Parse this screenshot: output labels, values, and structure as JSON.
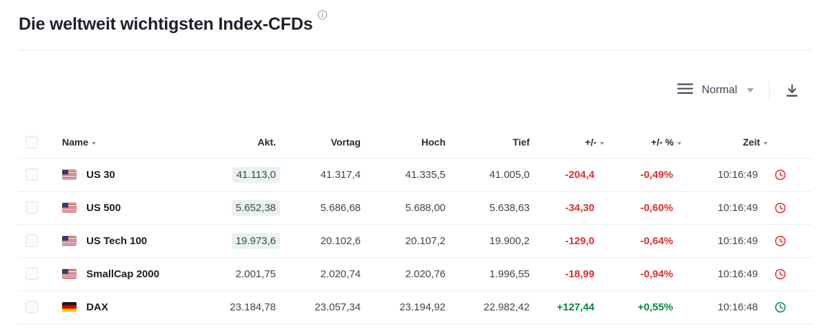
{
  "page": {
    "title": "Die weltweit wichtigsten Index-CFDs"
  },
  "toolbar": {
    "view_mode": "Normal"
  },
  "colors": {
    "negative": "#e22d2d",
    "positive": "#0c8346",
    "flash_background": "#e8f3ee"
  },
  "table": {
    "columns": [
      {
        "key": "name",
        "label": "Name",
        "sortable": true
      },
      {
        "key": "akt",
        "label": "Akt.",
        "sortable": false
      },
      {
        "key": "vortag",
        "label": "Vortag",
        "sortable": false
      },
      {
        "key": "hoch",
        "label": "Hoch",
        "sortable": false
      },
      {
        "key": "tief",
        "label": "Tief",
        "sortable": false
      },
      {
        "key": "change",
        "label": "+/-",
        "sortable": true
      },
      {
        "key": "change_pct",
        "label": "+/- %",
        "sortable": true
      },
      {
        "key": "zeit",
        "label": "Zeit",
        "sortable": true
      }
    ],
    "rows": [
      {
        "flag": "us",
        "name": "US 30",
        "akt": "41.113,0",
        "akt_highlight": true,
        "vortag": "41.317,4",
        "hoch": "41.335,5",
        "tief": "41.005,0",
        "change": "-204,4",
        "change_pct": "-0,49%",
        "zeit": "10:16:49",
        "trend": "negative"
      },
      {
        "flag": "us",
        "name": "US 500",
        "akt": "5.652,38",
        "akt_highlight": true,
        "vortag": "5.686,68",
        "hoch": "5.688,00",
        "tief": "5.638,63",
        "change": "-34,30",
        "change_pct": "-0,60%",
        "zeit": "10:16:49",
        "trend": "negative"
      },
      {
        "flag": "us",
        "name": "US Tech 100",
        "akt": "19.973,6",
        "akt_highlight": true,
        "vortag": "20.102,6",
        "hoch": "20.107,2",
        "tief": "19.900,2",
        "change": "-129,0",
        "change_pct": "-0,64%",
        "zeit": "10:16:49",
        "trend": "negative"
      },
      {
        "flag": "us",
        "name": "SmallCap 2000",
        "akt": "2.001,75",
        "akt_highlight": false,
        "vortag": "2.020,74",
        "hoch": "2.020,76",
        "tief": "1.996,55",
        "change": "-18,99",
        "change_pct": "-0,94%",
        "zeit": "10:16:49",
        "trend": "negative"
      },
      {
        "flag": "de",
        "name": "DAX",
        "akt": "23.184,78",
        "akt_highlight": false,
        "vortag": "23.057,34",
        "hoch": "23.194,92",
        "tief": "22.982,42",
        "change": "+127,44",
        "change_pct": "+0,55%",
        "zeit": "10:16:48",
        "trend": "positive"
      }
    ]
  }
}
